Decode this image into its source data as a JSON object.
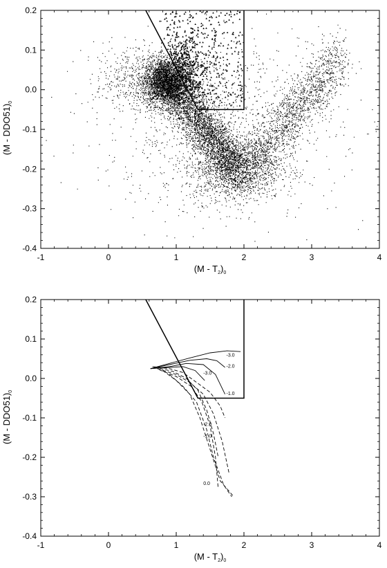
{
  "chart_data": [
    {
      "type": "scatter",
      "panel": "top",
      "title": "",
      "xlabel": "(M - T",
      "xlabel_sub": "2",
      "xlabel_close": ")",
      "xlabel_tail": "0",
      "ylabel": "(M - DDO51)",
      "ylabel_tail": "0",
      "xlim": [
        -1,
        4
      ],
      "ylim": [
        -0.4,
        0.2
      ],
      "x_ticks": [
        "-1",
        "0",
        "1",
        "2",
        "3",
        "4"
      ],
      "y_ticks": [
        "-0.4",
        "-0.3",
        "-0.2",
        "-0.1",
        "0.0",
        "0.1",
        "0.2"
      ],
      "grid": false,
      "selection_box": {
        "x": [
          0.55,
          1.32,
          2.0,
          2.0
        ],
        "y": [
          0.2,
          -0.05,
          -0.05,
          0.2
        ]
      },
      "series": [
        {
          "kind": "dwarf-main-sequence-cloud",
          "marker": "dot",
          "density_centers": [
            {
              "x": 0.85,
              "y": 0.02
            },
            {
              "x": 1.2,
              "y": -0.08
            },
            {
              "x": 1.75,
              "y": -0.2
            },
            {
              "x": 2.6,
              "y": -0.08
            },
            {
              "x": 3.2,
              "y": 0.05
            }
          ]
        },
        {
          "kind": "giant-candidates",
          "marker": "triangle",
          "x_range": [
            0.8,
            2.0
          ],
          "y_range": [
            -0.04,
            0.2
          ],
          "peak": {
            "x": 1.1,
            "y": 0.05
          }
        }
      ]
    },
    {
      "type": "line",
      "panel": "bottom",
      "title": "",
      "xlabel": "(M - T",
      "xlabel_sub": "2",
      "xlabel_close": ")",
      "xlabel_tail": "0",
      "ylabel": "(M - DDO51)",
      "ylabel_tail": "0",
      "xlim": [
        -1,
        4
      ],
      "ylim": [
        -0.4,
        0.2
      ],
      "x_ticks": [
        "-1",
        "0",
        "1",
        "2",
        "3",
        "4"
      ],
      "y_ticks": [
        "-0.4",
        "-0.3",
        "-0.2",
        "-0.1",
        "0.0",
        "0.1",
        "0.2"
      ],
      "grid": false,
      "selection_box": {
        "x": [
          0.55,
          1.32,
          2.0,
          2.0
        ],
        "y": [
          0.2,
          -0.05,
          -0.05,
          0.2
        ]
      },
      "series": [
        {
          "style": "solid",
          "label": "-3.0",
          "label_at": {
            "x": 1.74,
            "y": 0.055
          },
          "x": [
            0.62,
            0.9,
            1.2,
            1.5,
            1.75,
            1.95
          ],
          "y": [
            0.025,
            0.038,
            0.052,
            0.065,
            0.07,
            0.068
          ]
        },
        {
          "style": "solid",
          "label": "-2.0",
          "label_at": {
            "x": 1.74,
            "y": 0.027
          },
          "x": [
            0.62,
            0.9,
            1.2,
            1.45,
            1.6,
            1.72
          ],
          "y": [
            0.025,
            0.035,
            0.046,
            0.05,
            0.045,
            0.028
          ]
        },
        {
          "style": "solid",
          "label": "-1.0",
          "label_at": {
            "x": 1.74,
            "y": -0.042
          },
          "x": [
            0.62,
            0.9,
            1.15,
            1.4,
            1.58,
            1.72
          ],
          "y": [
            0.025,
            0.03,
            0.038,
            0.035,
            0.01,
            -0.04
          ]
        },
        {
          "style": "solid",
          "label": "-3.0",
          "label_at": {
            "x": 1.4,
            "y": 0.01
          },
          "x": [
            0.62,
            0.9,
            1.1,
            1.28,
            1.42
          ],
          "y": [
            0.025,
            0.028,
            0.03,
            0.02,
            -0.005
          ]
        },
        {
          "style": "dashed",
          "label": "-2.0",
          "label_at": {
            "x": 1.4,
            "y": -0.12
          },
          "x": [
            0.65,
            0.9,
            1.1,
            1.3,
            1.5,
            1.65,
            1.72
          ],
          "y": [
            0.03,
            0.025,
            0.015,
            -0.01,
            -0.035,
            -0.07,
            -0.1
          ]
        },
        {
          "style": "dashed",
          "label": "-1.0",
          "label_at": {
            "x": 1.4,
            "y": -0.15
          },
          "x": [
            0.72,
            1.0,
            1.2,
            1.4,
            1.55,
            1.68,
            1.78
          ],
          "y": [
            0.025,
            0.01,
            -0.01,
            -0.04,
            -0.09,
            -0.16,
            -0.24
          ]
        },
        {
          "style": "dashed",
          "label": "0.0",
          "label_at": {
            "x": 1.4,
            "y": -0.27
          },
          "x": [
            0.8,
            1.0,
            1.2,
            1.35,
            1.5,
            1.65,
            1.85
          ],
          "y": [
            0.02,
            -0.005,
            -0.04,
            -0.1,
            -0.18,
            -0.26,
            -0.3
          ]
        },
        {
          "style": "dashed",
          "x": [
            0.68,
            0.95,
            1.15,
            1.32,
            1.45,
            1.55,
            1.62
          ],
          "y": [
            0.028,
            0.018,
            0.0,
            -0.03,
            -0.08,
            -0.14,
            -0.2
          ]
        },
        {
          "style": "dashed",
          "x": [
            0.75,
            1.0,
            1.22,
            1.38,
            1.5,
            1.58,
            1.62
          ],
          "y": [
            0.022,
            0.005,
            -0.02,
            -0.06,
            -0.12,
            -0.2,
            -0.28
          ]
        },
        {
          "style": "dashed",
          "x": [
            0.9,
            1.1,
            1.3,
            1.45,
            1.55,
            1.7,
            1.82
          ],
          "y": [
            0.01,
            -0.02,
            -0.06,
            -0.13,
            -0.2,
            -0.27,
            -0.3
          ]
        }
      ]
    }
  ]
}
